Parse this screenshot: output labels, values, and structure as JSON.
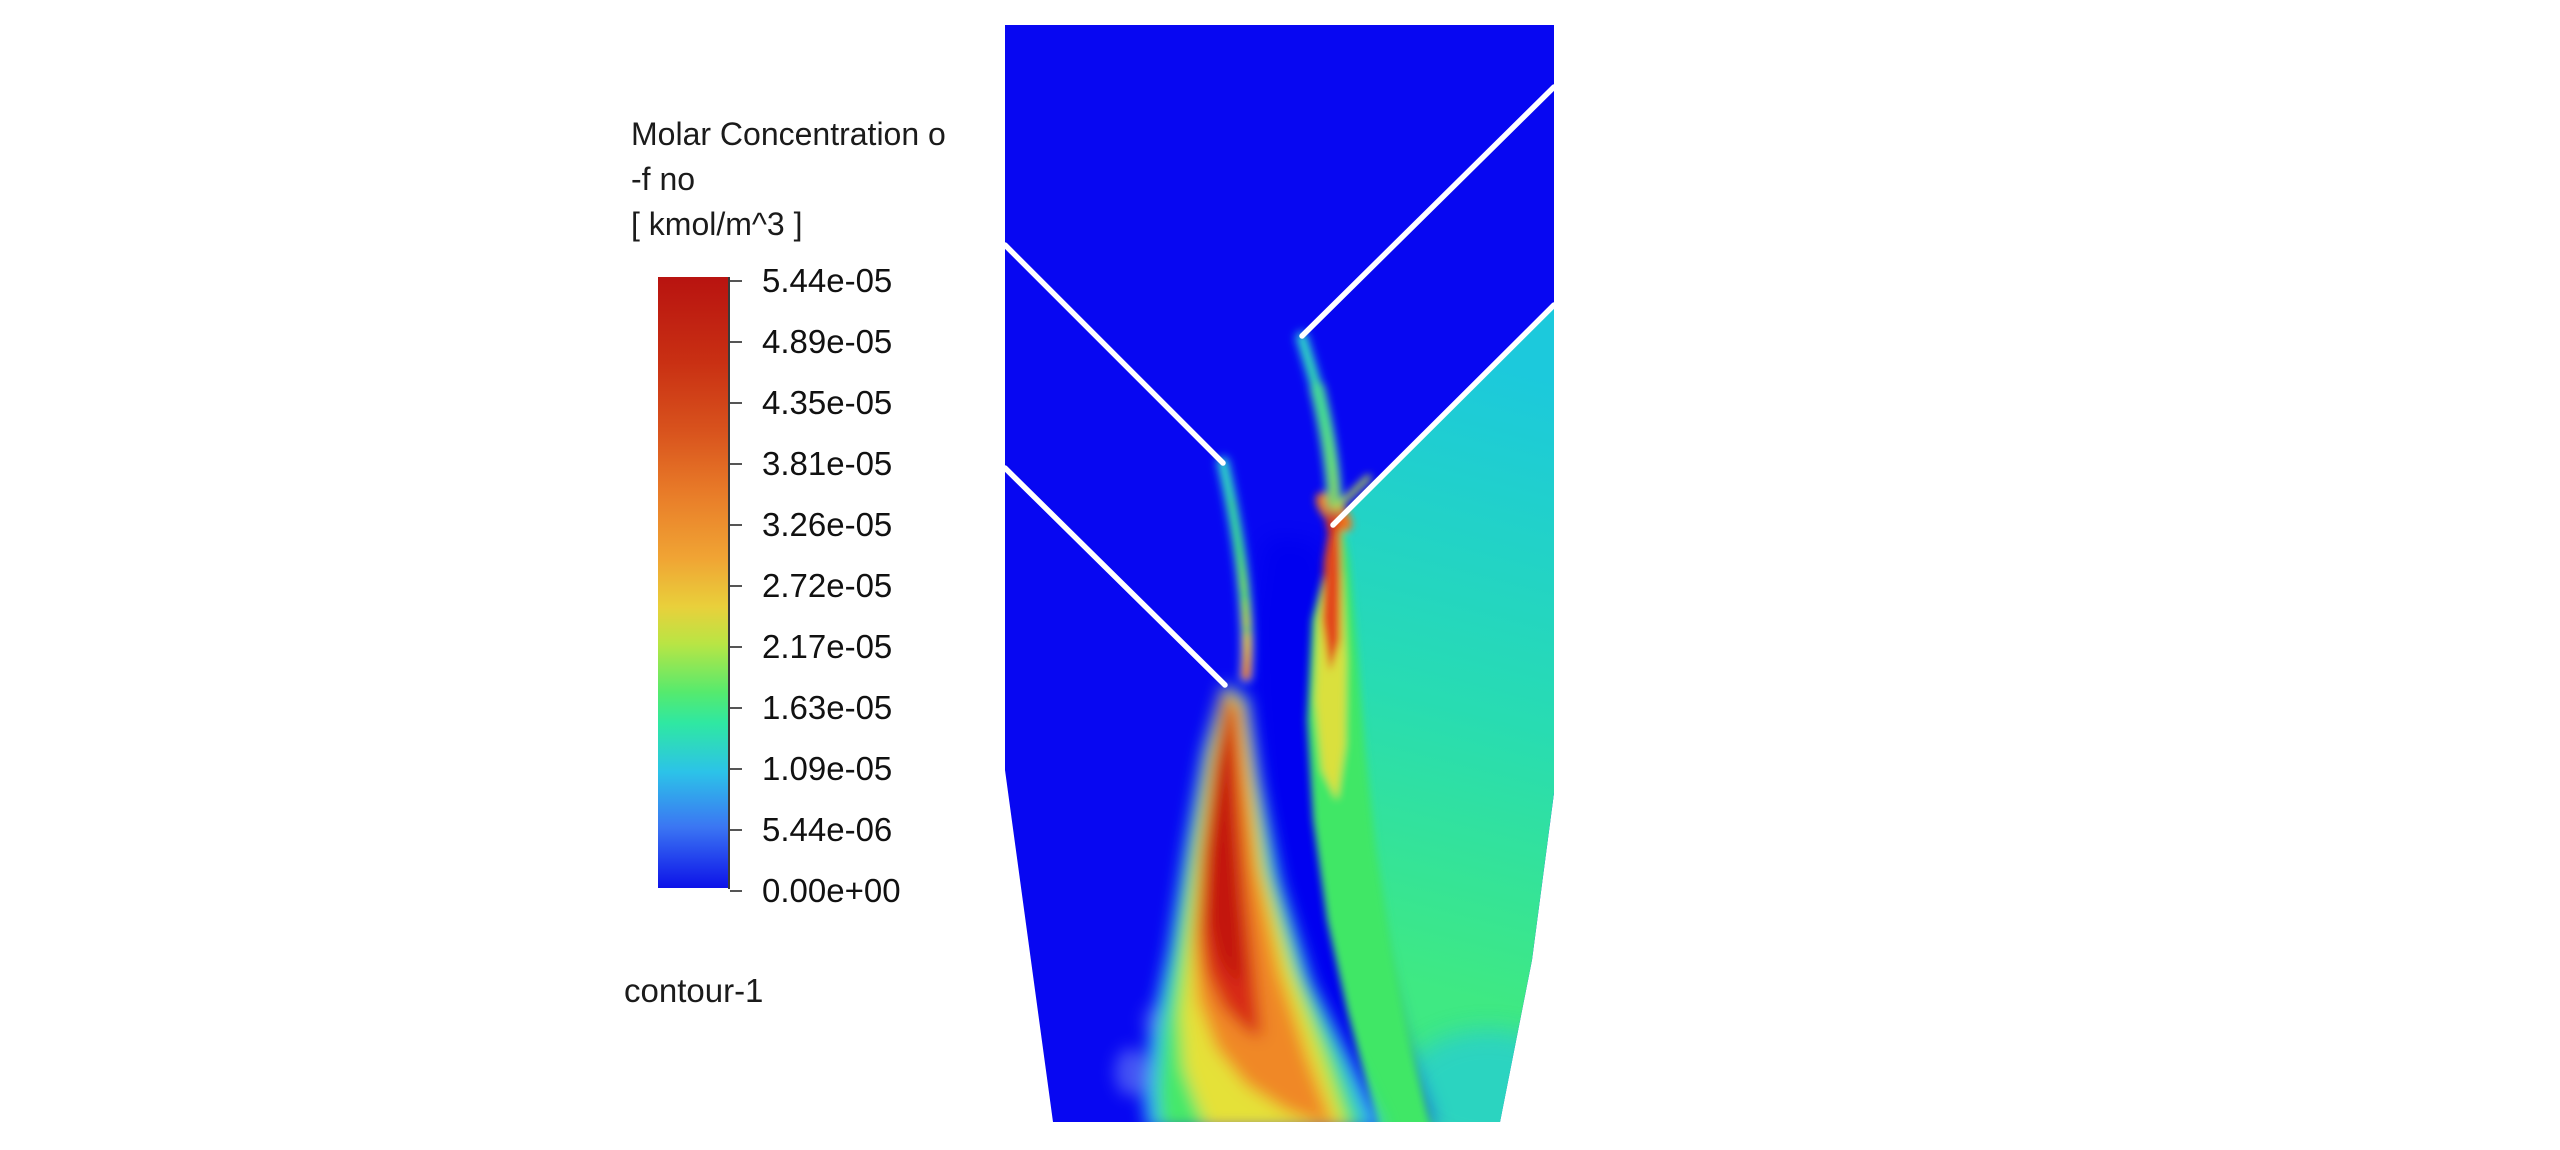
{
  "legend": {
    "title_lines": [
      "Molar Concentration o",
      "-f no",
      "[ kmol/m^3 ]"
    ],
    "labels": [
      "5.44e-05",
      "4.89e-05",
      "4.35e-05",
      "3.81e-05",
      "3.26e-05",
      "2.72e-05",
      "2.17e-05",
      "1.63e-05",
      "1.09e-05",
      "5.44e-06",
      "0.00e+00"
    ],
    "contour_name": "contour-1"
  },
  "colors": {
    "background": "#ffffff",
    "field_blue": "#0707f2",
    "wall_line": "#ffffff",
    "text": "#1b1b1b",
    "colormap_bottom_to_top": [
      "#0d12e8",
      "#3b76f3",
      "#2cc3e8",
      "#2fe8a2",
      "#55ea6e",
      "#b9e544",
      "#e9d03b",
      "#f0a434",
      "#e87a28",
      "#d8521d",
      "#c93013",
      "#b81310"
    ]
  },
  "chart_data": {
    "type": "heatmap",
    "title": "Molar Concentration of no [ kmol/m^3 ]",
    "quantity": "Molar Concentration of no",
    "units": "kmol/m^3",
    "colorbar_values": [
      5.44e-05,
      4.89e-05,
      4.35e-05,
      3.81e-05,
      3.26e-05,
      2.72e-05,
      2.17e-05,
      1.63e-05,
      1.09e-05,
      5.44e-06,
      0.0
    ],
    "range": [
      0.0,
      5.44e-05
    ],
    "legend_position": "left",
    "grid": false,
    "regions": [
      {
        "name": "upper-funnel-and-left-field",
        "approx_value": 0.0,
        "color": "blue"
      },
      {
        "name": "right-recirculation-zone-below-upper-right-wall",
        "approx_value": 1.5e-05,
        "color": "teal-cyan"
      },
      {
        "name": "right-jet-band",
        "approx_value": 2.3e-05,
        "color": "green, red-orange core 5.0e-05 near wall tip"
      },
      {
        "name": "left-plume-core",
        "approx_value": 5.2e-05,
        "color": "dark red, widening downstream"
      },
      {
        "name": "left-plume-halo",
        "approx_value": 2.5e-05,
        "color": "yellow-green-cyan rings"
      },
      {
        "name": "center-channel-between-jets",
        "approx_value": 0.0,
        "color": "blue"
      }
    ],
    "geometry_note": "Vertical burner section: rectangle x1005-1554 y25-793 tapering to bottom edge y1122 (x1053-1500); two pairs of 45-degree white wall lines form converging nozzle; NO plumes emanate from wall tips"
  }
}
